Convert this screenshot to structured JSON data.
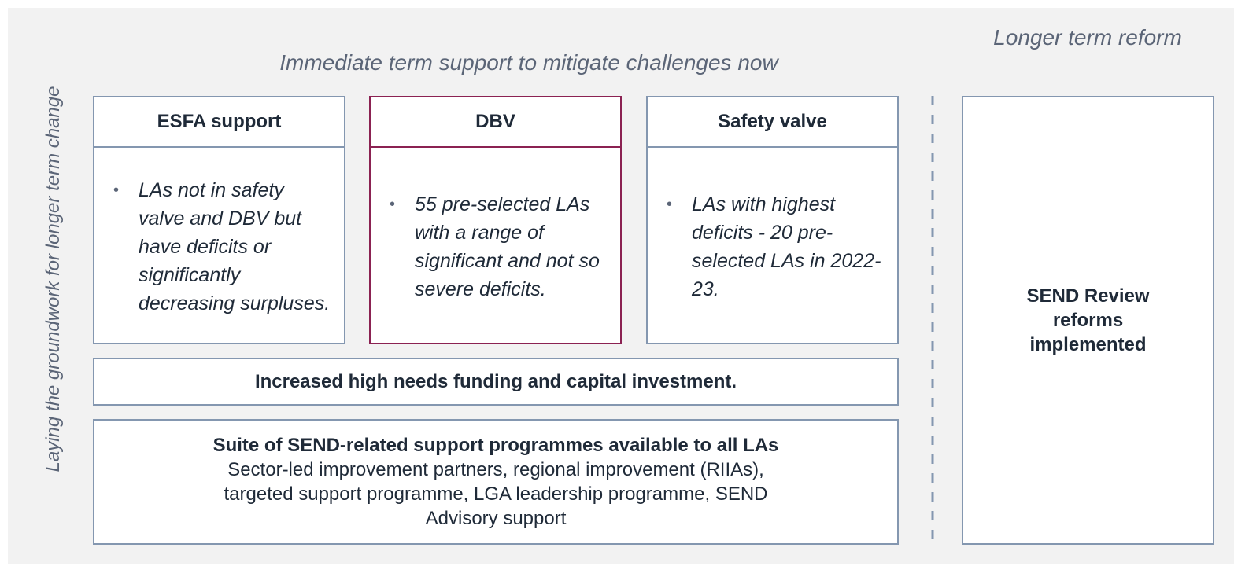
{
  "side_label": "Laying the groundwork for longer term change",
  "immediate": {
    "heading": "Immediate term support to mitigate challenges now",
    "boxes": [
      {
        "title": "ESFA support",
        "bullets": [
          "LAs not in safety valve and DBV but have deficits or significantly decreasing surpluses."
        ]
      },
      {
        "title": "DBV",
        "bullets": [
          "55 pre-selected LAs with a range of significant and not so severe deficits."
        ]
      },
      {
        "title": "Safety valve",
        "bullets": [
          "LAs with highest deficits - 20 pre-selected LAs in 2022-23."
        ]
      }
    ],
    "funding": "Increased high needs funding and capital investment.",
    "programmes": {
      "title": "Suite of SEND-related support programmes available to all LAs",
      "body": "Sector-led improvement partners, regional improvement (RIIAs), targeted support programme, LGA leadership programme, SEND Advisory support"
    }
  },
  "longer": {
    "heading": "Longer term reform",
    "box": "SEND Review reforms implemented"
  }
}
